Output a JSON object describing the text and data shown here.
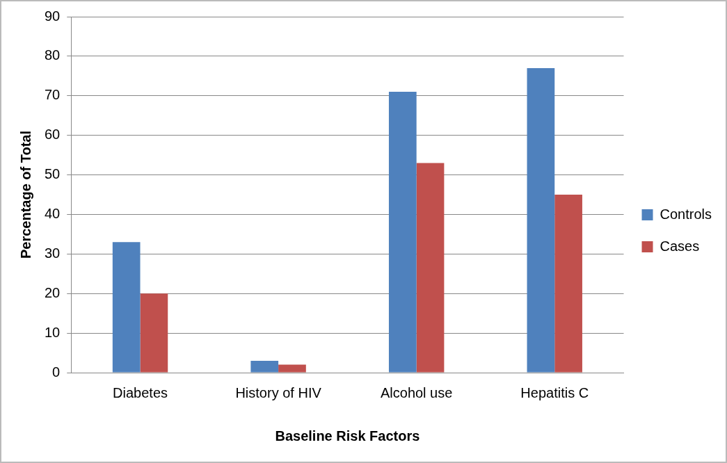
{
  "chart_data": {
    "type": "bar",
    "xlabel": "Baseline Risk Factors",
    "ylabel": "Percentage of Total",
    "categories": [
      "Diabetes",
      "History of HIV",
      "Alcohol use",
      "Hepatitis C"
    ],
    "series": [
      {
        "name": "Controls",
        "color": "#4f81bd",
        "values": [
          33,
          3,
          71,
          77
        ]
      },
      {
        "name": "Cases",
        "color": "#c0504d",
        "values": [
          20,
          2,
          53,
          45
        ]
      }
    ],
    "ylim": [
      0,
      90
    ],
    "yticks": [
      0,
      10,
      20,
      30,
      40,
      50,
      60,
      70,
      80,
      90
    ],
    "grid": "y",
    "legend": "right"
  }
}
